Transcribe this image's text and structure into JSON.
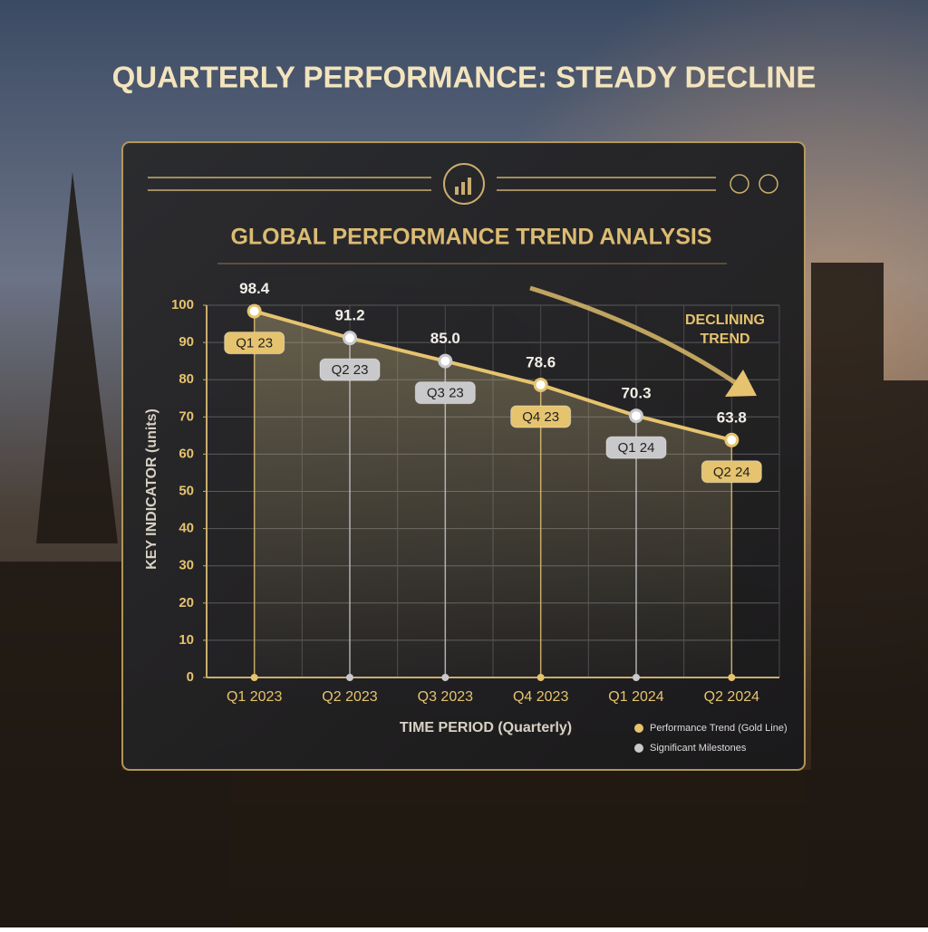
{
  "title": "QUARTERLY PERFORMANCE: STEADY DECLINE",
  "chart_data": {
    "type": "line",
    "title": "GLOBAL PERFORMANCE TREND ANALYSIS",
    "y_label": "KEY INDICATOR (units)",
    "x_label": "TIME PERIOD (Quarterly)",
    "annotation": "DECLINING TREND",
    "categories": [
      "Q1 2023",
      "Q2 2023",
      "Q3 2023",
      "Q4 2023",
      "Q1 2024",
      "Q2 2024"
    ],
    "series": [
      {
        "name": "Performance Trend (Gold Line)",
        "color": "#e6c36e",
        "values": [
          98.4,
          91.2,
          85.0,
          78.6,
          70.3,
          63.8
        ],
        "value_labels": [
          "98.4",
          "91.2",
          "85.0",
          "78.6",
          "70.3",
          "63.8"
        ],
        "point_labels": [
          "Q1 23",
          "Q2 23",
          "Q3 23",
          "Q4 23",
          "Q1 24",
          "Q2 24"
        ],
        "point_colors": [
          "#e6c36e",
          "#c9c9cc",
          "#c9c9cc",
          "#e6c36e",
          "#c9c9cc",
          "#e6c36e"
        ]
      }
    ],
    "milestones": {
      "name": "Significant Milestones",
      "color": "#c9c9cc"
    },
    "ylim": [
      0,
      100
    ],
    "yticks": [
      0,
      10,
      20,
      30,
      40,
      50,
      60,
      70,
      80,
      90,
      100
    ],
    "grid": true
  }
}
